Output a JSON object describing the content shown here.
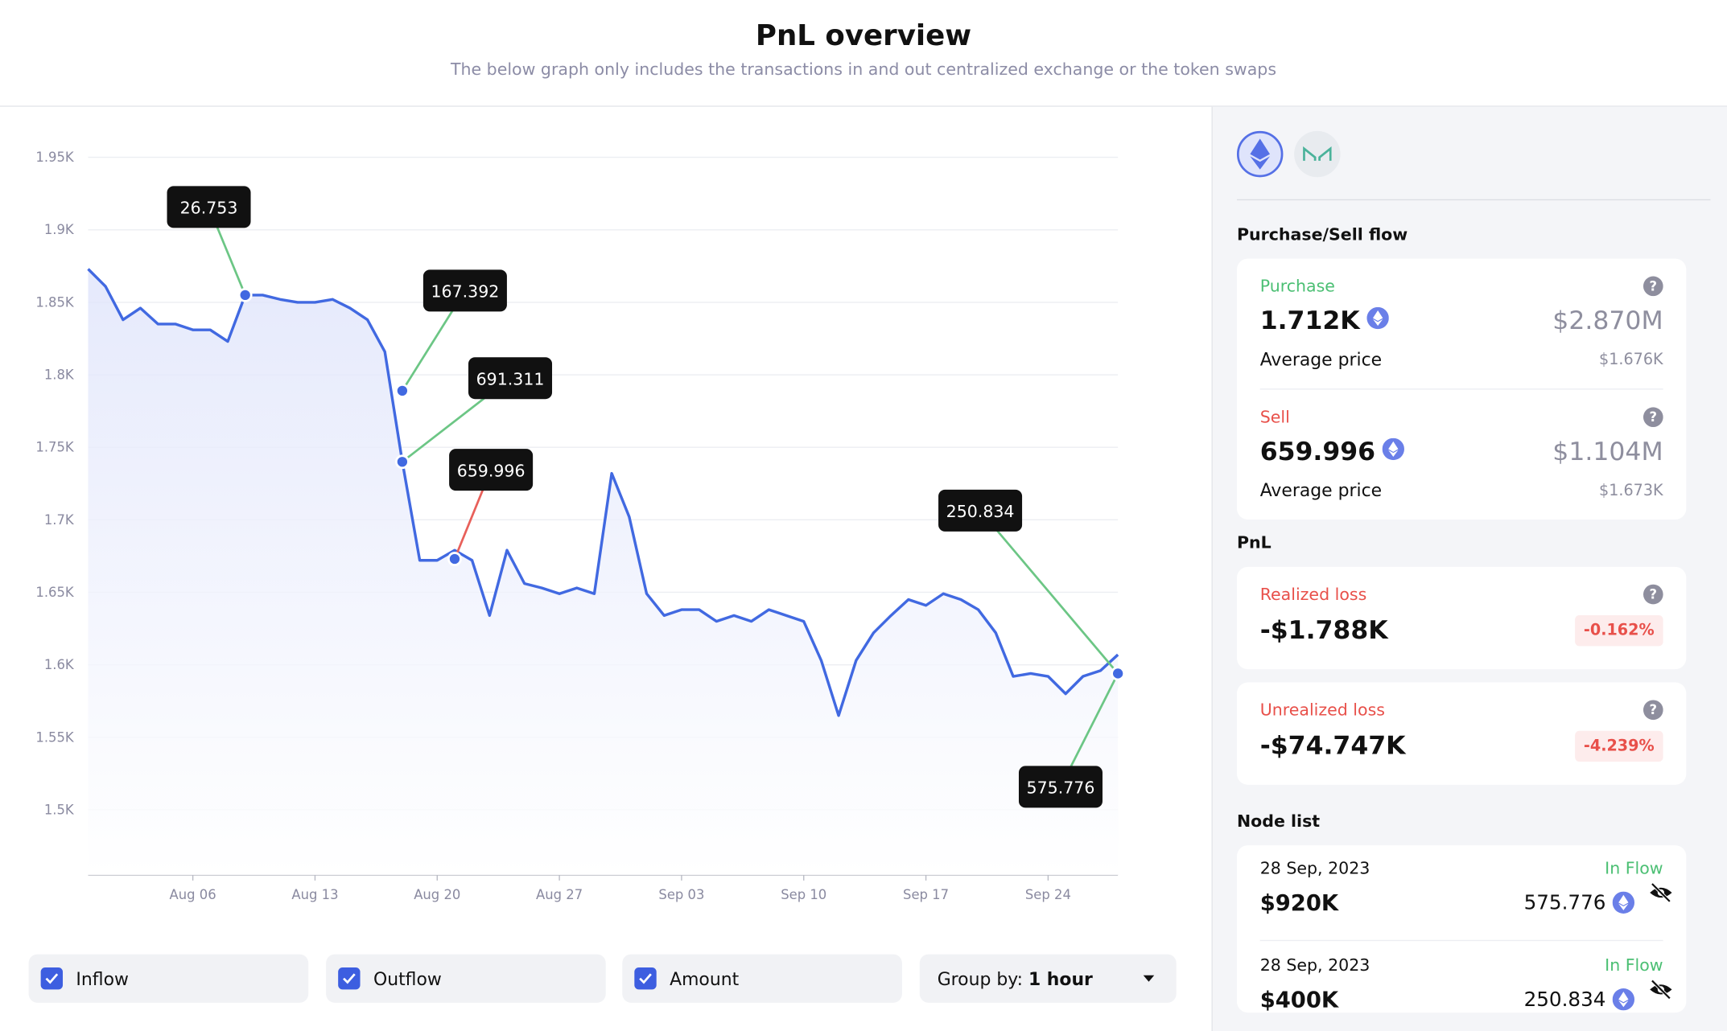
{
  "header": {
    "title": "PnL overview",
    "subtitle": "The below graph only includes the transactions in and out centralized exchange or the token swaps"
  },
  "chart_data": {
    "type": "line",
    "x": [
      "Jul 31",
      "Aug 01",
      "Aug 02",
      "Aug 03",
      "Aug 04",
      "Aug 05",
      "Aug 06",
      "Aug 07",
      "Aug 08",
      "Aug 09",
      "Aug 10",
      "Aug 11",
      "Aug 12",
      "Aug 13",
      "Aug 14",
      "Aug 15",
      "Aug 16",
      "Aug 17",
      "Aug 18",
      "Aug 19",
      "Aug 20",
      "Aug 21",
      "Aug 22",
      "Aug 23",
      "Aug 24",
      "Aug 25",
      "Aug 26",
      "Aug 27",
      "Aug 28",
      "Aug 29",
      "Aug 30",
      "Aug 31",
      "Sep 01",
      "Sep 02",
      "Sep 03",
      "Sep 04",
      "Sep 05",
      "Sep 06",
      "Sep 07",
      "Sep 08",
      "Sep 09",
      "Sep 10",
      "Sep 11",
      "Sep 12",
      "Sep 13",
      "Sep 14",
      "Sep 15",
      "Sep 16",
      "Sep 17",
      "Sep 18",
      "Sep 19",
      "Sep 20",
      "Sep 21",
      "Sep 22",
      "Sep 23",
      "Sep 24",
      "Sep 25",
      "Sep 26",
      "Sep 27",
      "Sep 28"
    ],
    "series": [
      {
        "color": "#4169e1",
        "values": [
          1873,
          1861,
          1838,
          1846,
          1835,
          1835,
          1831,
          1831,
          1823,
          1855,
          1855,
          1852,
          1850,
          1850,
          1852,
          1846,
          1838,
          1816,
          1740,
          1672,
          1672,
          1679,
          1672,
          1634,
          1679,
          1656,
          1653,
          1649,
          1653,
          1649,
          1732,
          1702,
          1649,
          1634,
          1638,
          1638,
          1630,
          1634,
          1630,
          1638,
          1634,
          1630,
          1603,
          1565,
          1603,
          1622,
          1634,
          1645,
          1641,
          1649,
          1645,
          1638,
          1622,
          1592,
          1594,
          1592,
          1580,
          1592,
          1596,
          1607
        ]
      }
    ],
    "ylim": [
      1455,
      1975
    ],
    "yticks": [
      {
        "value": 1500,
        "label": "1.5K"
      },
      {
        "value": 1550,
        "label": "1.55K"
      },
      {
        "value": 1600,
        "label": "1.6K"
      },
      {
        "value": 1650,
        "label": "1.65K"
      },
      {
        "value": 1700,
        "label": "1.7K"
      },
      {
        "value": 1750,
        "label": "1.75K"
      },
      {
        "value": 1800,
        "label": "1.8K"
      },
      {
        "value": 1850,
        "label": "1.85K"
      },
      {
        "value": 1900,
        "label": "1.9K"
      },
      {
        "value": 1950,
        "label": "1.95K"
      }
    ],
    "xticks": [
      "Aug 06",
      "Aug 13",
      "Aug 20",
      "Aug 27",
      "Sep 03",
      "Sep 10",
      "Sep 17",
      "Sep 24"
    ],
    "grid": true,
    "annotations": [
      {
        "amount": 26.753,
        "x": "Aug 09",
        "y": 1855,
        "color": "#6cc685"
      },
      {
        "amount": 167.392,
        "x": "Aug 18",
        "y": 1789,
        "color": "#6cc685"
      },
      {
        "amount": 691.311,
        "x": "Aug 18",
        "y": 1740,
        "color": "#6cc685"
      },
      {
        "amount": 659.996,
        "x": "Aug 21",
        "y": 1673,
        "color": "#e8605a"
      },
      {
        "amount": 250.834,
        "x": "Sep 28",
        "y": 1594,
        "color": "#6cc685"
      },
      {
        "amount": 575.776,
        "x": "Sep 28",
        "y": 1594,
        "color": "#6cc685"
      }
    ]
  },
  "controls": {
    "checkboxes": [
      "Inflow",
      "Outflow",
      "Amount"
    ],
    "group_by_label": "Group by:",
    "group_by_value": "1 hour"
  },
  "panel": {
    "flow_title": "Purchase/Sell flow",
    "purchase": {
      "label": "Purchase",
      "amount": "1.712K",
      "usd": "$2.870M",
      "avg_label": "Average price",
      "avg": "$1.676K"
    },
    "sell": {
      "label": "Sell",
      "amount": "659.996",
      "usd": "$1.104M",
      "avg_label": "Average price",
      "avg": "$1.673K"
    },
    "pnl_title": "PnL",
    "realized": {
      "label": "Realized loss",
      "value": "-$1.788K",
      "pct": "-0.162%"
    },
    "unrealized": {
      "label": "Unrealized loss",
      "value": "-$74.747K",
      "pct": "-4.239%"
    },
    "node_title": "Node list",
    "nodes": [
      {
        "date": "28 Sep, 2023",
        "value": "$920K",
        "flow": "In Flow",
        "amount": 575.776
      },
      {
        "date": "28 Sep, 2023",
        "value": "$400K",
        "flow": "In Flow",
        "amount": 250.834
      }
    ]
  }
}
